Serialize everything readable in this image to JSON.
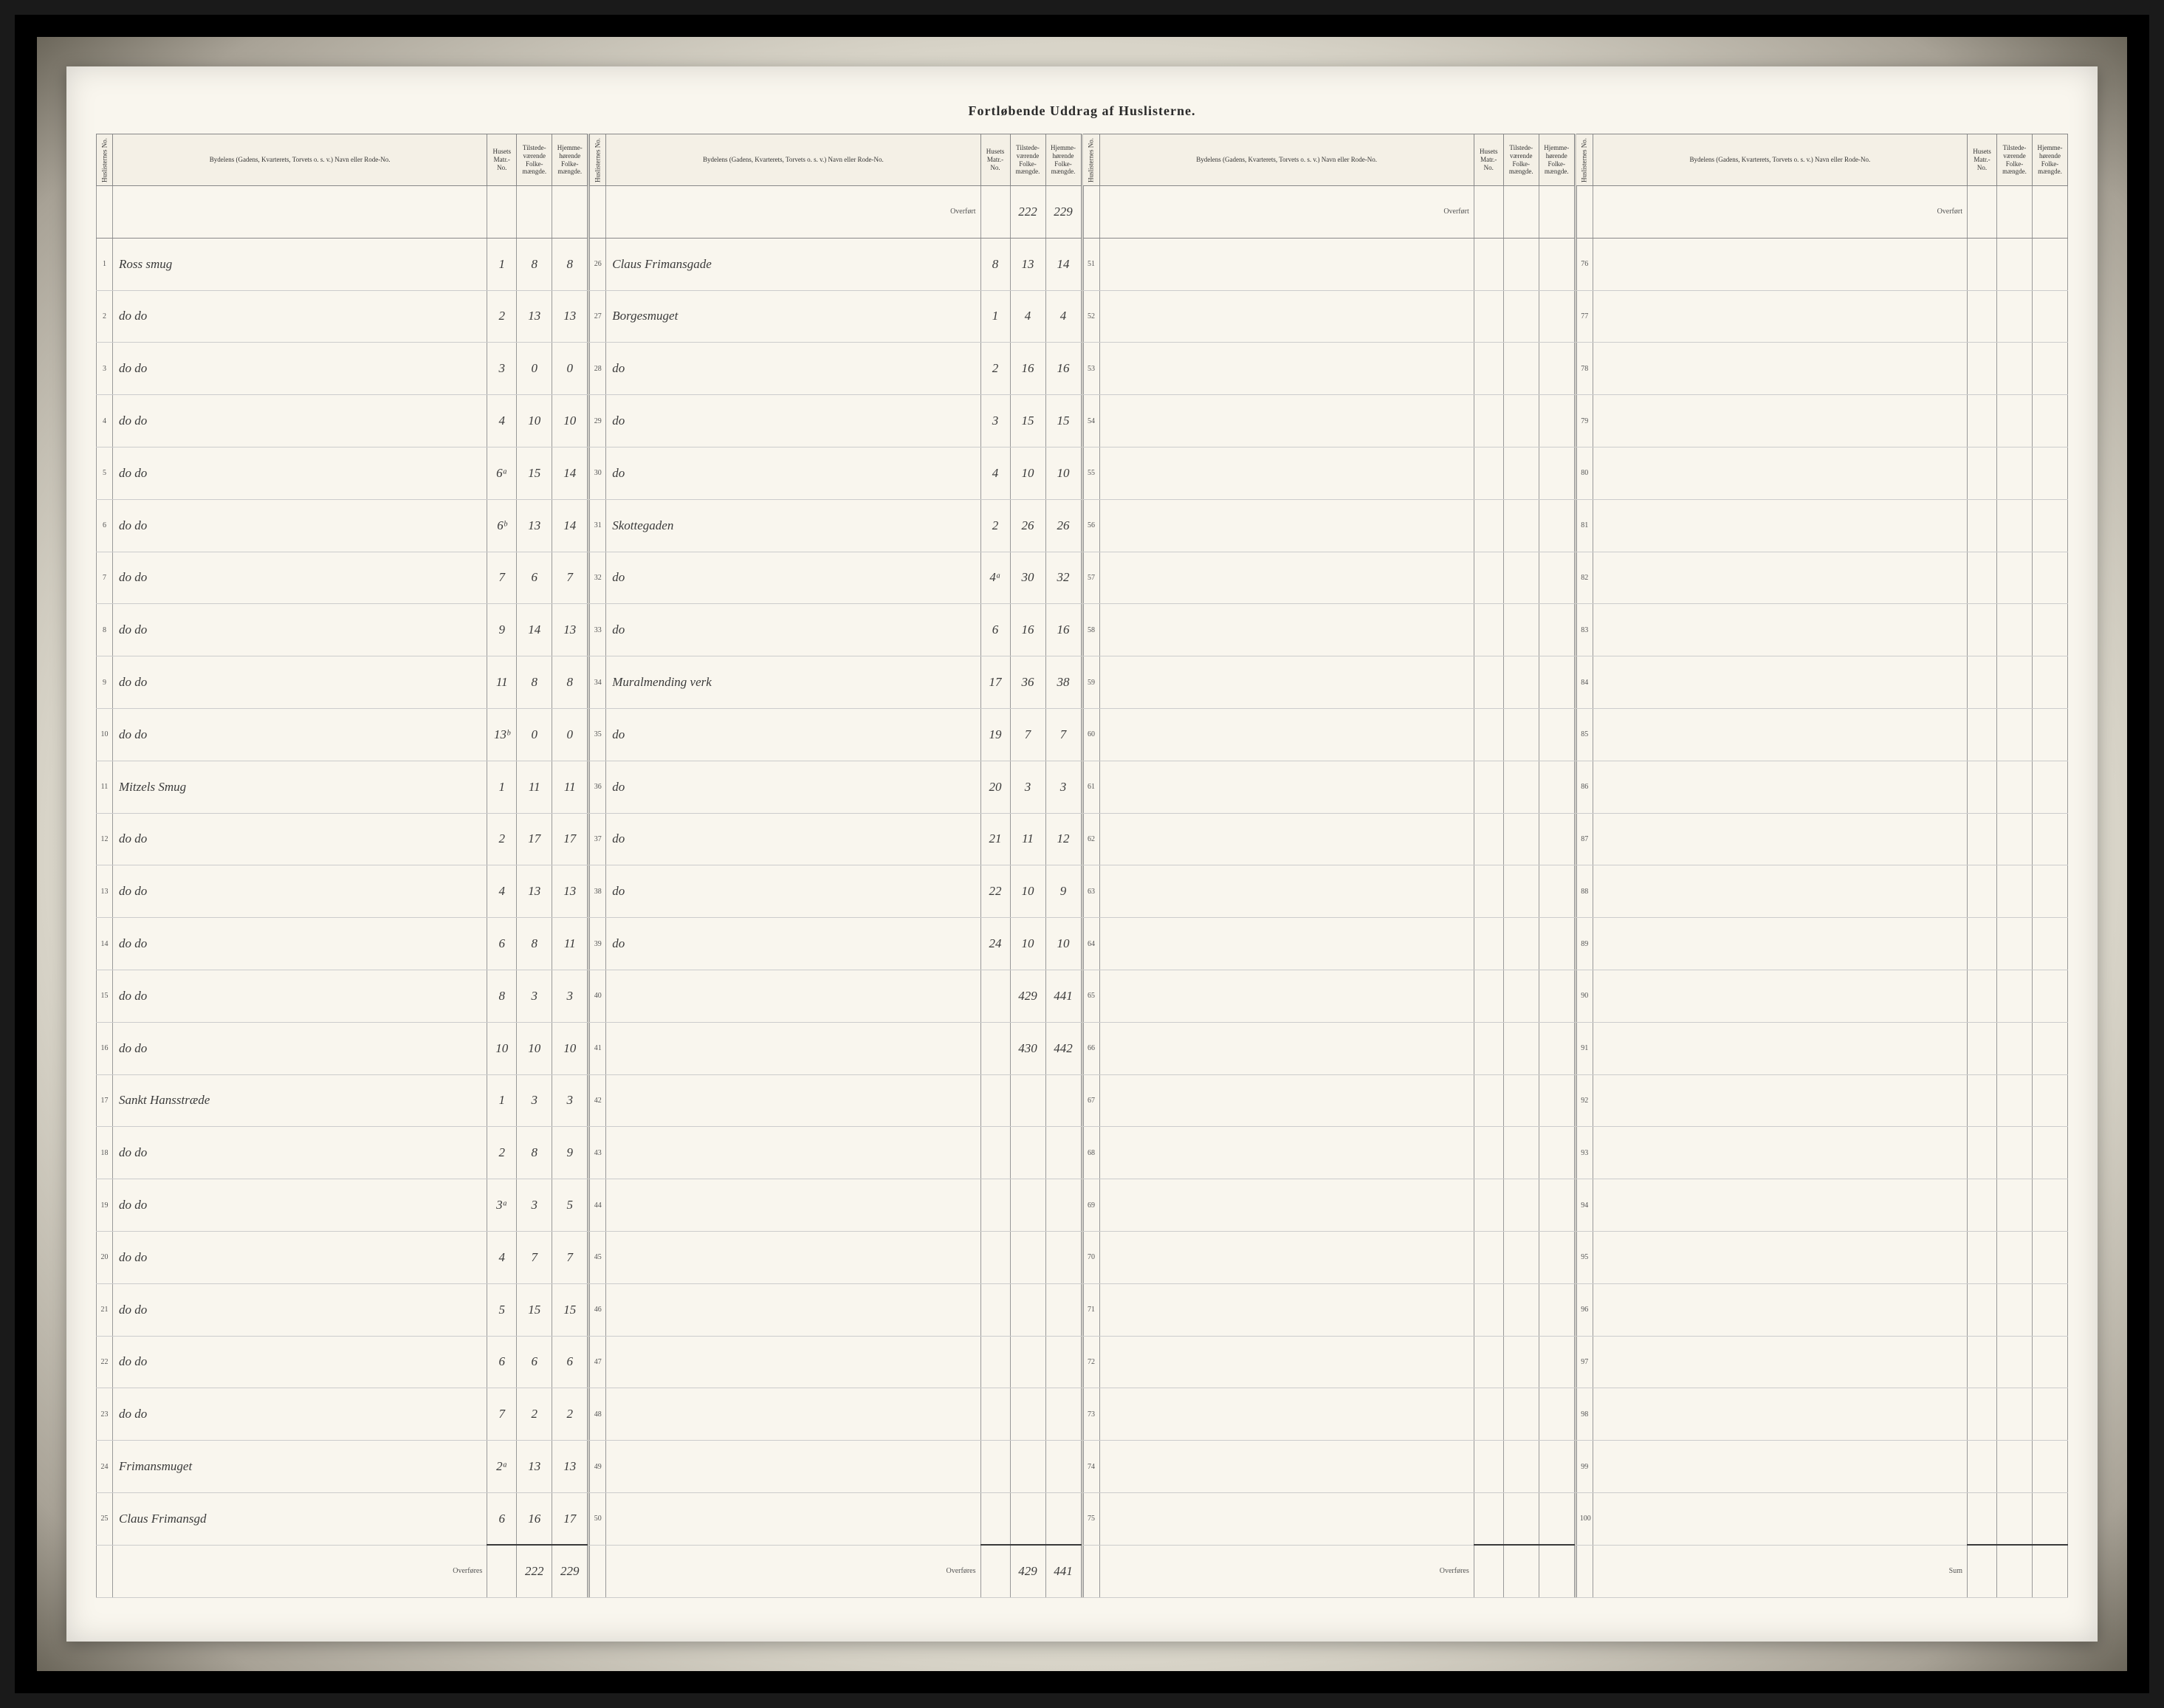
{
  "title": "Fortløbende Uddrag af Huslisterne.",
  "headers": {
    "lineno": "Huslisternes No.",
    "street": "Bydelens (Gadens, Kvarterets, Torvets o. s. v.) Navn eller Rode-No.",
    "matr": "Husets Matr.-No.",
    "tilstede": "Tilstede-værende Folke-mængde.",
    "hjemme": "Hjemme-hørende Folke-mængde."
  },
  "overfort_label": "Overført",
  "overfores_label": "Overføres",
  "sum_label": "Sum",
  "panels": [
    {
      "carry_in": null,
      "rows": [
        {
          "n": "1",
          "street": "Ross smug",
          "matr": "1",
          "t": "8",
          "h": "8"
        },
        {
          "n": "2",
          "street": "do    do",
          "matr": "2",
          "t": "13",
          "h": "13"
        },
        {
          "n": "3",
          "street": "do    do",
          "matr": "3",
          "t": "0",
          "h": "0"
        },
        {
          "n": "4",
          "street": "do    do",
          "matr": "4",
          "t": "10",
          "h": "10"
        },
        {
          "n": "5",
          "street": "do    do",
          "matr": "6ᵃ",
          "t": "15",
          "h": "14"
        },
        {
          "n": "6",
          "street": "do    do",
          "matr": "6ᵇ",
          "t": "13",
          "h": "14"
        },
        {
          "n": "7",
          "street": "do    do",
          "matr": "7",
          "t": "6",
          "h": "7"
        },
        {
          "n": "8",
          "street": "do    do",
          "matr": "9",
          "t": "14",
          "h": "13"
        },
        {
          "n": "9",
          "street": "do    do",
          "matr": "11",
          "t": "8",
          "h": "8"
        },
        {
          "n": "10",
          "street": "do    do",
          "matr": "13ᵇ",
          "t": "0",
          "h": "0"
        },
        {
          "n": "11",
          "street": "Mitzels Smug",
          "matr": "1",
          "t": "11",
          "h": "11"
        },
        {
          "n": "12",
          "street": "do    do",
          "matr": "2",
          "t": "17",
          "h": "17"
        },
        {
          "n": "13",
          "street": "do    do",
          "matr": "4",
          "t": "13",
          "h": "13"
        },
        {
          "n": "14",
          "street": "do    do",
          "matr": "6",
          "t": "8",
          "h": "11"
        },
        {
          "n": "15",
          "street": "do    do",
          "matr": "8",
          "t": "3",
          "h": "3"
        },
        {
          "n": "16",
          "street": "do    do",
          "matr": "10",
          "t": "10",
          "h": "10"
        },
        {
          "n": "17",
          "street": "Sankt Hansstræde",
          "matr": "1",
          "t": "3",
          "h": "3"
        },
        {
          "n": "18",
          "street": "do    do",
          "matr": "2",
          "t": "8",
          "h": "9"
        },
        {
          "n": "19",
          "street": "do    do",
          "matr": "3ᵃ",
          "t": "3",
          "h": "5"
        },
        {
          "n": "20",
          "street": "do    do",
          "matr": "4",
          "t": "7",
          "h": "7"
        },
        {
          "n": "21",
          "street": "do    do",
          "matr": "5",
          "t": "15",
          "h": "15"
        },
        {
          "n": "22",
          "street": "do    do",
          "matr": "6",
          "t": "6",
          "h": "6"
        },
        {
          "n": "23",
          "street": "do    do",
          "matr": "7",
          "t": "2",
          "h": "2"
        },
        {
          "n": "24",
          "street": "Frimansmuget",
          "matr": "2ᵃ",
          "t": "13",
          "h": "13"
        },
        {
          "n": "25",
          "street": "Claus Frimansgd",
          "matr": "6",
          "t": "16",
          "h": "17"
        }
      ],
      "carry_out": {
        "t": "222",
        "h": "229"
      }
    },
    {
      "carry_in": {
        "t": "222",
        "h": "229"
      },
      "rows": [
        {
          "n": "26",
          "street": "Claus Frimansgade",
          "matr": "8",
          "t": "13",
          "h": "14"
        },
        {
          "n": "27",
          "street": "Borgesmuget",
          "matr": "1",
          "t": "4",
          "h": "4"
        },
        {
          "n": "28",
          "street": "do",
          "matr": "2",
          "t": "16",
          "h": "16"
        },
        {
          "n": "29",
          "street": "do",
          "matr": "3",
          "t": "15",
          "h": "15"
        },
        {
          "n": "30",
          "street": "do",
          "matr": "4",
          "t": "10",
          "h": "10"
        },
        {
          "n": "31",
          "street": "Skottegaden",
          "matr": "2",
          "t": "26",
          "h": "26"
        },
        {
          "n": "32",
          "street": "do",
          "matr": "4ᵃ",
          "t": "30",
          "h": "32"
        },
        {
          "n": "33",
          "street": "do",
          "matr": "6",
          "t": "16",
          "h": "16"
        },
        {
          "n": "34",
          "street": "Muralmending verk",
          "matr": "17",
          "t": "36",
          "h": "38"
        },
        {
          "n": "35",
          "street": "do",
          "matr": "19",
          "t": "7",
          "h": "7"
        },
        {
          "n": "36",
          "street": "do",
          "matr": "20",
          "t": "3",
          "h": "3"
        },
        {
          "n": "37",
          "street": "do",
          "matr": "21",
          "t": "11",
          "h": "12"
        },
        {
          "n": "38",
          "street": "do",
          "matr": "22",
          "t": "10",
          "h": "9"
        },
        {
          "n": "39",
          "street": "do",
          "matr": "24",
          "t": "10",
          "h": "10"
        },
        {
          "n": "40",
          "street": "",
          "matr": "",
          "t": "429",
          "h": "441"
        },
        {
          "n": "41",
          "street": "",
          "matr": "",
          "t": "430",
          "h": "442"
        },
        {
          "n": "42",
          "street": "",
          "matr": "",
          "t": "",
          "h": ""
        },
        {
          "n": "43",
          "street": "",
          "matr": "",
          "t": "",
          "h": ""
        },
        {
          "n": "44",
          "street": "",
          "matr": "",
          "t": "",
          "h": ""
        },
        {
          "n": "45",
          "street": "",
          "matr": "",
          "t": "",
          "h": ""
        },
        {
          "n": "46",
          "street": "",
          "matr": "",
          "t": "",
          "h": ""
        },
        {
          "n": "47",
          "street": "",
          "matr": "",
          "t": "",
          "h": ""
        },
        {
          "n": "48",
          "street": "",
          "matr": "",
          "t": "",
          "h": ""
        },
        {
          "n": "49",
          "street": "",
          "matr": "",
          "t": "",
          "h": ""
        },
        {
          "n": "50",
          "street": "",
          "matr": "",
          "t": "",
          "h": ""
        }
      ],
      "carry_out": {
        "t": "429",
        "h": "441"
      }
    },
    {
      "carry_in": {
        "t": "",
        "h": ""
      },
      "rows": [
        {
          "n": "51",
          "street": "",
          "matr": "",
          "t": "",
          "h": ""
        },
        {
          "n": "52",
          "street": "",
          "matr": "",
          "t": "",
          "h": ""
        },
        {
          "n": "53",
          "street": "",
          "matr": "",
          "t": "",
          "h": ""
        },
        {
          "n": "54",
          "street": "",
          "matr": "",
          "t": "",
          "h": ""
        },
        {
          "n": "55",
          "street": "",
          "matr": "",
          "t": "",
          "h": ""
        },
        {
          "n": "56",
          "street": "",
          "matr": "",
          "t": "",
          "h": ""
        },
        {
          "n": "57",
          "street": "",
          "matr": "",
          "t": "",
          "h": ""
        },
        {
          "n": "58",
          "street": "",
          "matr": "",
          "t": "",
          "h": ""
        },
        {
          "n": "59",
          "street": "",
          "matr": "",
          "t": "",
          "h": ""
        },
        {
          "n": "60",
          "street": "",
          "matr": "",
          "t": "",
          "h": ""
        },
        {
          "n": "61",
          "street": "",
          "matr": "",
          "t": "",
          "h": ""
        },
        {
          "n": "62",
          "street": "",
          "matr": "",
          "t": "",
          "h": ""
        },
        {
          "n": "63",
          "street": "",
          "matr": "",
          "t": "",
          "h": ""
        },
        {
          "n": "64",
          "street": "",
          "matr": "",
          "t": "",
          "h": ""
        },
        {
          "n": "65",
          "street": "",
          "matr": "",
          "t": "",
          "h": ""
        },
        {
          "n": "66",
          "street": "",
          "matr": "",
          "t": "",
          "h": ""
        },
        {
          "n": "67",
          "street": "",
          "matr": "",
          "t": "",
          "h": ""
        },
        {
          "n": "68",
          "street": "",
          "matr": "",
          "t": "",
          "h": ""
        },
        {
          "n": "69",
          "street": "",
          "matr": "",
          "t": "",
          "h": ""
        },
        {
          "n": "70",
          "street": "",
          "matr": "",
          "t": "",
          "h": ""
        },
        {
          "n": "71",
          "street": "",
          "matr": "",
          "t": "",
          "h": ""
        },
        {
          "n": "72",
          "street": "",
          "matr": "",
          "t": "",
          "h": ""
        },
        {
          "n": "73",
          "street": "",
          "matr": "",
          "t": "",
          "h": ""
        },
        {
          "n": "74",
          "street": "",
          "matr": "",
          "t": "",
          "h": ""
        },
        {
          "n": "75",
          "street": "",
          "matr": "",
          "t": "",
          "h": ""
        }
      ],
      "carry_out": {
        "t": "",
        "h": ""
      }
    },
    {
      "carry_in": {
        "t": "",
        "h": ""
      },
      "rows": [
        {
          "n": "76",
          "street": "",
          "matr": "",
          "t": "",
          "h": ""
        },
        {
          "n": "77",
          "street": "",
          "matr": "",
          "t": "",
          "h": ""
        },
        {
          "n": "78",
          "street": "",
          "matr": "",
          "t": "",
          "h": ""
        },
        {
          "n": "79",
          "street": "",
          "matr": "",
          "t": "",
          "h": ""
        },
        {
          "n": "80",
          "street": "",
          "matr": "",
          "t": "",
          "h": ""
        },
        {
          "n": "81",
          "street": "",
          "matr": "",
          "t": "",
          "h": ""
        },
        {
          "n": "82",
          "street": "",
          "matr": "",
          "t": "",
          "h": ""
        },
        {
          "n": "83",
          "street": "",
          "matr": "",
          "t": "",
          "h": ""
        },
        {
          "n": "84",
          "street": "",
          "matr": "",
          "t": "",
          "h": ""
        },
        {
          "n": "85",
          "street": "",
          "matr": "",
          "t": "",
          "h": ""
        },
        {
          "n": "86",
          "street": "",
          "matr": "",
          "t": "",
          "h": ""
        },
        {
          "n": "87",
          "street": "",
          "matr": "",
          "t": "",
          "h": ""
        },
        {
          "n": "88",
          "street": "",
          "matr": "",
          "t": "",
          "h": ""
        },
        {
          "n": "89",
          "street": "",
          "matr": "",
          "t": "",
          "h": ""
        },
        {
          "n": "90",
          "street": "",
          "matr": "",
          "t": "",
          "h": ""
        },
        {
          "n": "91",
          "street": "",
          "matr": "",
          "t": "",
          "h": ""
        },
        {
          "n": "92",
          "street": "",
          "matr": "",
          "t": "",
          "h": ""
        },
        {
          "n": "93",
          "street": "",
          "matr": "",
          "t": "",
          "h": ""
        },
        {
          "n": "94",
          "street": "",
          "matr": "",
          "t": "",
          "h": ""
        },
        {
          "n": "95",
          "street": "",
          "matr": "",
          "t": "",
          "h": ""
        },
        {
          "n": "96",
          "street": "",
          "matr": "",
          "t": "",
          "h": ""
        },
        {
          "n": "97",
          "street": "",
          "matr": "",
          "t": "",
          "h": ""
        },
        {
          "n": "98",
          "street": "",
          "matr": "",
          "t": "",
          "h": ""
        },
        {
          "n": "99",
          "street": "",
          "matr": "",
          "t": "",
          "h": ""
        },
        {
          "n": "100",
          "street": "",
          "matr": "",
          "t": "",
          "h": ""
        }
      ],
      "carry_out": null,
      "sum": true
    }
  ]
}
